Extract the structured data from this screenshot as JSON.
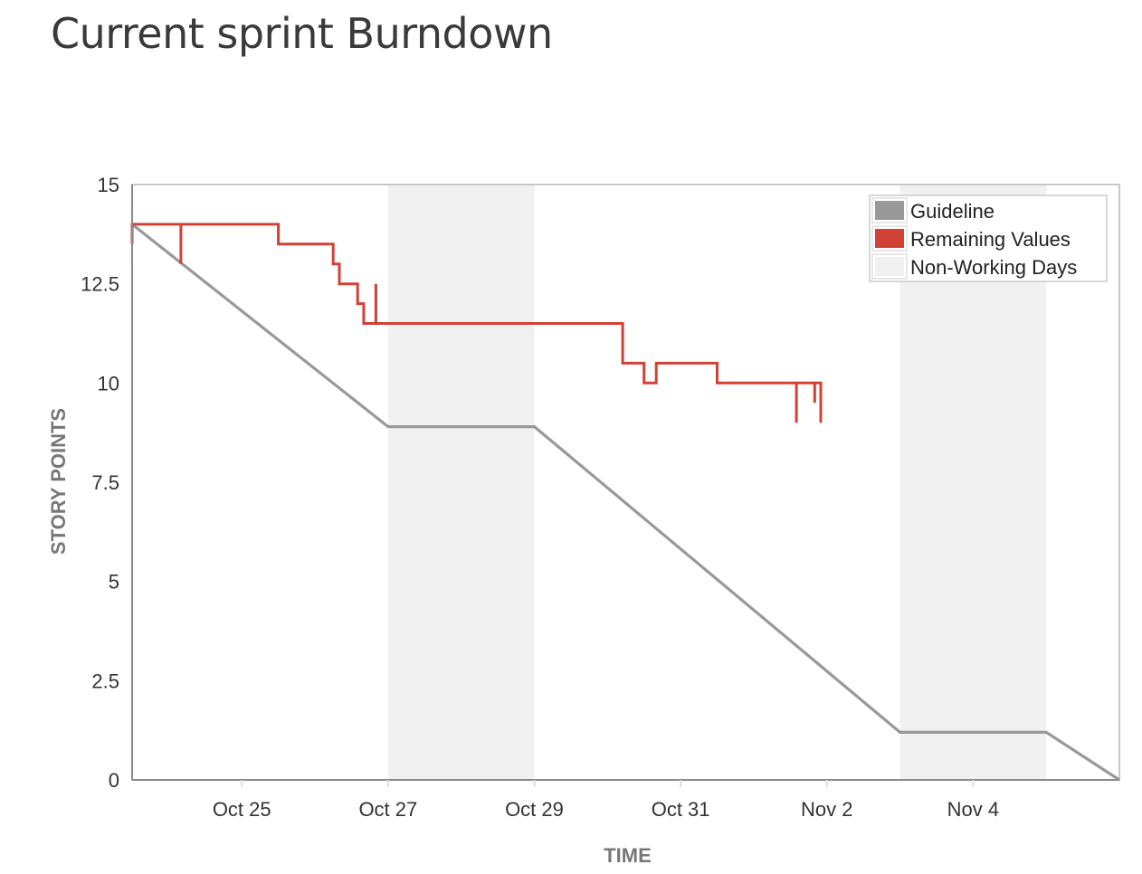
{
  "page": {
    "title": "Current sprint Burndown"
  },
  "chart_data": {
    "type": "line",
    "title": "Current sprint Burndown",
    "xlabel": "TIME",
    "ylabel": "STORY POINTS",
    "x_type": "datetime",
    "x_range": [
      "Oct 23 12:00",
      "Nov 6 00:00"
    ],
    "ylim": [
      0,
      15
    ],
    "y_ticks": [
      {
        "value": 0,
        "label": "0"
      },
      {
        "value": 2.5,
        "label": "2.5"
      },
      {
        "value": 5,
        "label": "5"
      },
      {
        "value": 7.5,
        "label": "7.5"
      },
      {
        "value": 10,
        "label": "10"
      },
      {
        "value": 12.5,
        "label": "12.5"
      },
      {
        "value": 15,
        "label": "15"
      }
    ],
    "x_ticks": [
      {
        "value": "Oct 25 00:00",
        "label": "Oct 25"
      },
      {
        "value": "Oct 27 00:00",
        "label": "Oct 27"
      },
      {
        "value": "Oct 29 00:00",
        "label": "Oct 29"
      },
      {
        "value": "Oct 31 00:00",
        "label": "Oct 31"
      },
      {
        "value": "Nov 2 00:00",
        "label": "Nov 2"
      },
      {
        "value": "Nov 4 00:00",
        "label": "Nov 4"
      }
    ],
    "grid": false,
    "legend_position": "top-right",
    "non_working_days": [
      {
        "start": "Oct 27 00:00",
        "end": "Oct 29 00:00"
      },
      {
        "start": "Nov 3 00:00",
        "end": "Nov 5 00:00"
      }
    ],
    "series": [
      {
        "name": "Guideline",
        "color": "#999999",
        "style": "line",
        "points": [
          {
            "x": "Oct 23 12:00",
            "y": 14
          },
          {
            "x": "Oct 27 00:00",
            "y": 8.9
          },
          {
            "x": "Oct 29 00:00",
            "y": 8.9
          },
          {
            "x": "Nov 3 00:00",
            "y": 1.2
          },
          {
            "x": "Nov 5 00:00",
            "y": 1.2
          },
          {
            "x": "Nov 6 00:00",
            "y": 0
          }
        ]
      },
      {
        "name": "Remaining Values",
        "color": "#d24136",
        "style": "step",
        "points": [
          {
            "x": "Oct 23 12:00",
            "y": 13.5
          },
          {
            "x": "Oct 23 12:00",
            "y": 14
          },
          {
            "x": "Oct 24 04:00",
            "y": 14
          },
          {
            "x": "Oct 24 04:00",
            "y": 13
          },
          {
            "x": "Oct 24 04:00",
            "y": 14
          },
          {
            "x": "Oct 25 12:00",
            "y": 14
          },
          {
            "x": "Oct 25 12:00",
            "y": 13.5
          },
          {
            "x": "Oct 26 06:00",
            "y": 13.5
          },
          {
            "x": "Oct 26 06:00",
            "y": 13
          },
          {
            "x": "Oct 26 08:00",
            "y": 13
          },
          {
            "x": "Oct 26 08:00",
            "y": 12.5
          },
          {
            "x": "Oct 26 14:00",
            "y": 12.5
          },
          {
            "x": "Oct 26 14:00",
            "y": 12
          },
          {
            "x": "Oct 26 16:00",
            "y": 12
          },
          {
            "x": "Oct 26 16:00",
            "y": 11.5
          },
          {
            "x": "Oct 26 20:00",
            "y": 11.5
          },
          {
            "x": "Oct 26 20:00",
            "y": 12.5
          },
          {
            "x": "Oct 26 20:00",
            "y": 11.5
          },
          {
            "x": "Oct 30 05:00",
            "y": 11.5
          },
          {
            "x": "Oct 30 05:00",
            "y": 10.5
          },
          {
            "x": "Oct 30 12:00",
            "y": 10.5
          },
          {
            "x": "Oct 30 12:00",
            "y": 10
          },
          {
            "x": "Oct 30 16:00",
            "y": 10
          },
          {
            "x": "Oct 30 16:00",
            "y": 10.5
          },
          {
            "x": "Oct 31 12:00",
            "y": 10.5
          },
          {
            "x": "Oct 31 12:00",
            "y": 10
          },
          {
            "x": "Nov 1 14:00",
            "y": 10
          },
          {
            "x": "Nov 1 14:00",
            "y": 9
          },
          {
            "x": "Nov 1 14:00",
            "y": 10
          },
          {
            "x": "Nov 1 20:00",
            "y": 10
          },
          {
            "x": "Nov 1 20:00",
            "y": 9.5
          },
          {
            "x": "Nov 1 20:00",
            "y": 10
          },
          {
            "x": "Nov 1 22:00",
            "y": 10
          },
          {
            "x": "Nov 1 22:00",
            "y": 9
          }
        ]
      }
    ],
    "legend": [
      {
        "label": "Guideline",
        "swatch": "#999999"
      },
      {
        "label": "Remaining Values",
        "swatch": "#d24136"
      },
      {
        "label": "Non-Working Days",
        "swatch": "#f0f0f0"
      }
    ]
  }
}
